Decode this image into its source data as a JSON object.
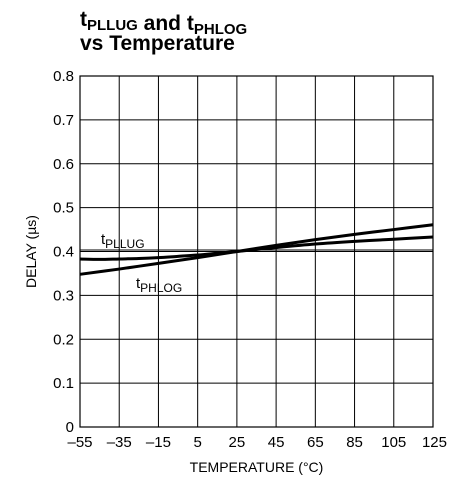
{
  "chart_data": {
    "type": "line",
    "title": {
      "line1": [
        {
          "main": "t",
          "sub": "PLLUG"
        },
        {
          "text": " and "
        },
        {
          "main": "t",
          "sub": "PHLOG"
        }
      ],
      "line2": "vs Temperature"
    },
    "xlabel": "TEMPERATURE (°C)",
    "ylabel": "DELAY (µs)",
    "xlim": [
      -55,
      125
    ],
    "ylim": [
      0,
      0.8
    ],
    "xticks": [
      -55,
      -35,
      -15,
      5,
      25,
      45,
      65,
      85,
      105,
      125
    ],
    "xtick_labels": [
      "–55",
      "–35",
      "–15",
      "5",
      "25",
      "45",
      "65",
      "85",
      "105",
      "125"
    ],
    "yticks": [
      0,
      0.1,
      0.2,
      0.3,
      0.4,
      0.5,
      0.6,
      0.7,
      0.8
    ],
    "ytick_labels": [
      "0",
      "0.1",
      "0.2",
      "0.3",
      "0.4",
      "0.5",
      "0.6",
      "0.7",
      "0.8"
    ],
    "reference_y": 0.4,
    "grid": true,
    "series": [
      {
        "label_main": "t",
        "label_sub": "PLLUG",
        "x": [
          -55,
          -45,
          -35,
          -25,
          -15,
          -5,
          5,
          15,
          25,
          45,
          65,
          85,
          105,
          125
        ],
        "y": [
          0.383,
          0.382,
          0.383,
          0.384,
          0.386,
          0.389,
          0.392,
          0.396,
          0.4,
          0.409,
          0.417,
          0.423,
          0.428,
          0.433
        ]
      },
      {
        "label_main": "t",
        "label_sub": "PHLOG",
        "x": [
          -55,
          -35,
          -15,
          5,
          25,
          45,
          65,
          85,
          105,
          125
        ],
        "y": [
          0.348,
          0.36,
          0.373,
          0.386,
          0.4,
          0.414,
          0.427,
          0.439,
          0.45,
          0.461
        ]
      }
    ]
  }
}
